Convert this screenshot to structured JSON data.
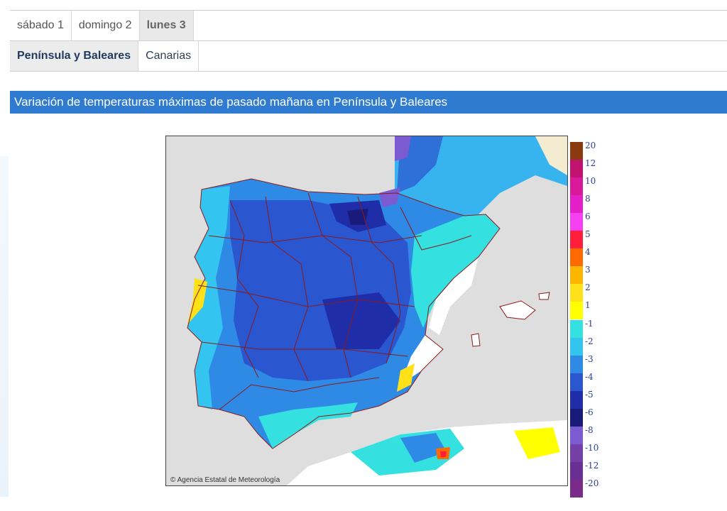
{
  "day_tabs": [
    {
      "label": "sábado 1",
      "active": false
    },
    {
      "label": "domingo 2",
      "active": false
    },
    {
      "label": "lunes 3",
      "active": true
    }
  ],
  "region_tabs": [
    {
      "label": "Península y Baleares",
      "active": true
    },
    {
      "label": "Canarias",
      "active": false
    }
  ],
  "banner": {
    "title": "Variación de temperaturas máximas de pasado mañana en Península y Baleares"
  },
  "map": {
    "credit": "© Agencia Estatal de Meteorología"
  },
  "legend": {
    "warm": [
      {
        "label": "20",
        "color": "#8b3a0f"
      },
      {
        "label": "12",
        "color": "#c0126e"
      },
      {
        "label": "10",
        "color": "#d9189a"
      },
      {
        "label": "8",
        "color": "#e51fc7"
      },
      {
        "label": "6",
        "color": "#f43ff2"
      },
      {
        "label": "5",
        "color": "#ff1f3b"
      },
      {
        "label": "4",
        "color": "#ff6a00"
      },
      {
        "label": "3",
        "color": "#ffb400"
      },
      {
        "label": "2",
        "color": "#ffe11a"
      },
      {
        "label": "1",
        "color": "#ffff00"
      }
    ],
    "cold": [
      {
        "label": "-1",
        "color": "#35e0e0"
      },
      {
        "label": "-2",
        "color": "#33c4f0"
      },
      {
        "label": "-3",
        "color": "#2f8ae6"
      },
      {
        "label": "-4",
        "color": "#2a56cf"
      },
      {
        "label": "-5",
        "color": "#1f2ea8"
      },
      {
        "label": "-6",
        "color": "#191a7a"
      },
      {
        "label": "-8",
        "color": "#7b5bd1"
      },
      {
        "label": "-10",
        "color": "#7440a8"
      },
      {
        "label": "-12",
        "color": "#6a2f92"
      },
      {
        "label": "-20",
        "color": "#7a2a88"
      }
    ]
  }
}
